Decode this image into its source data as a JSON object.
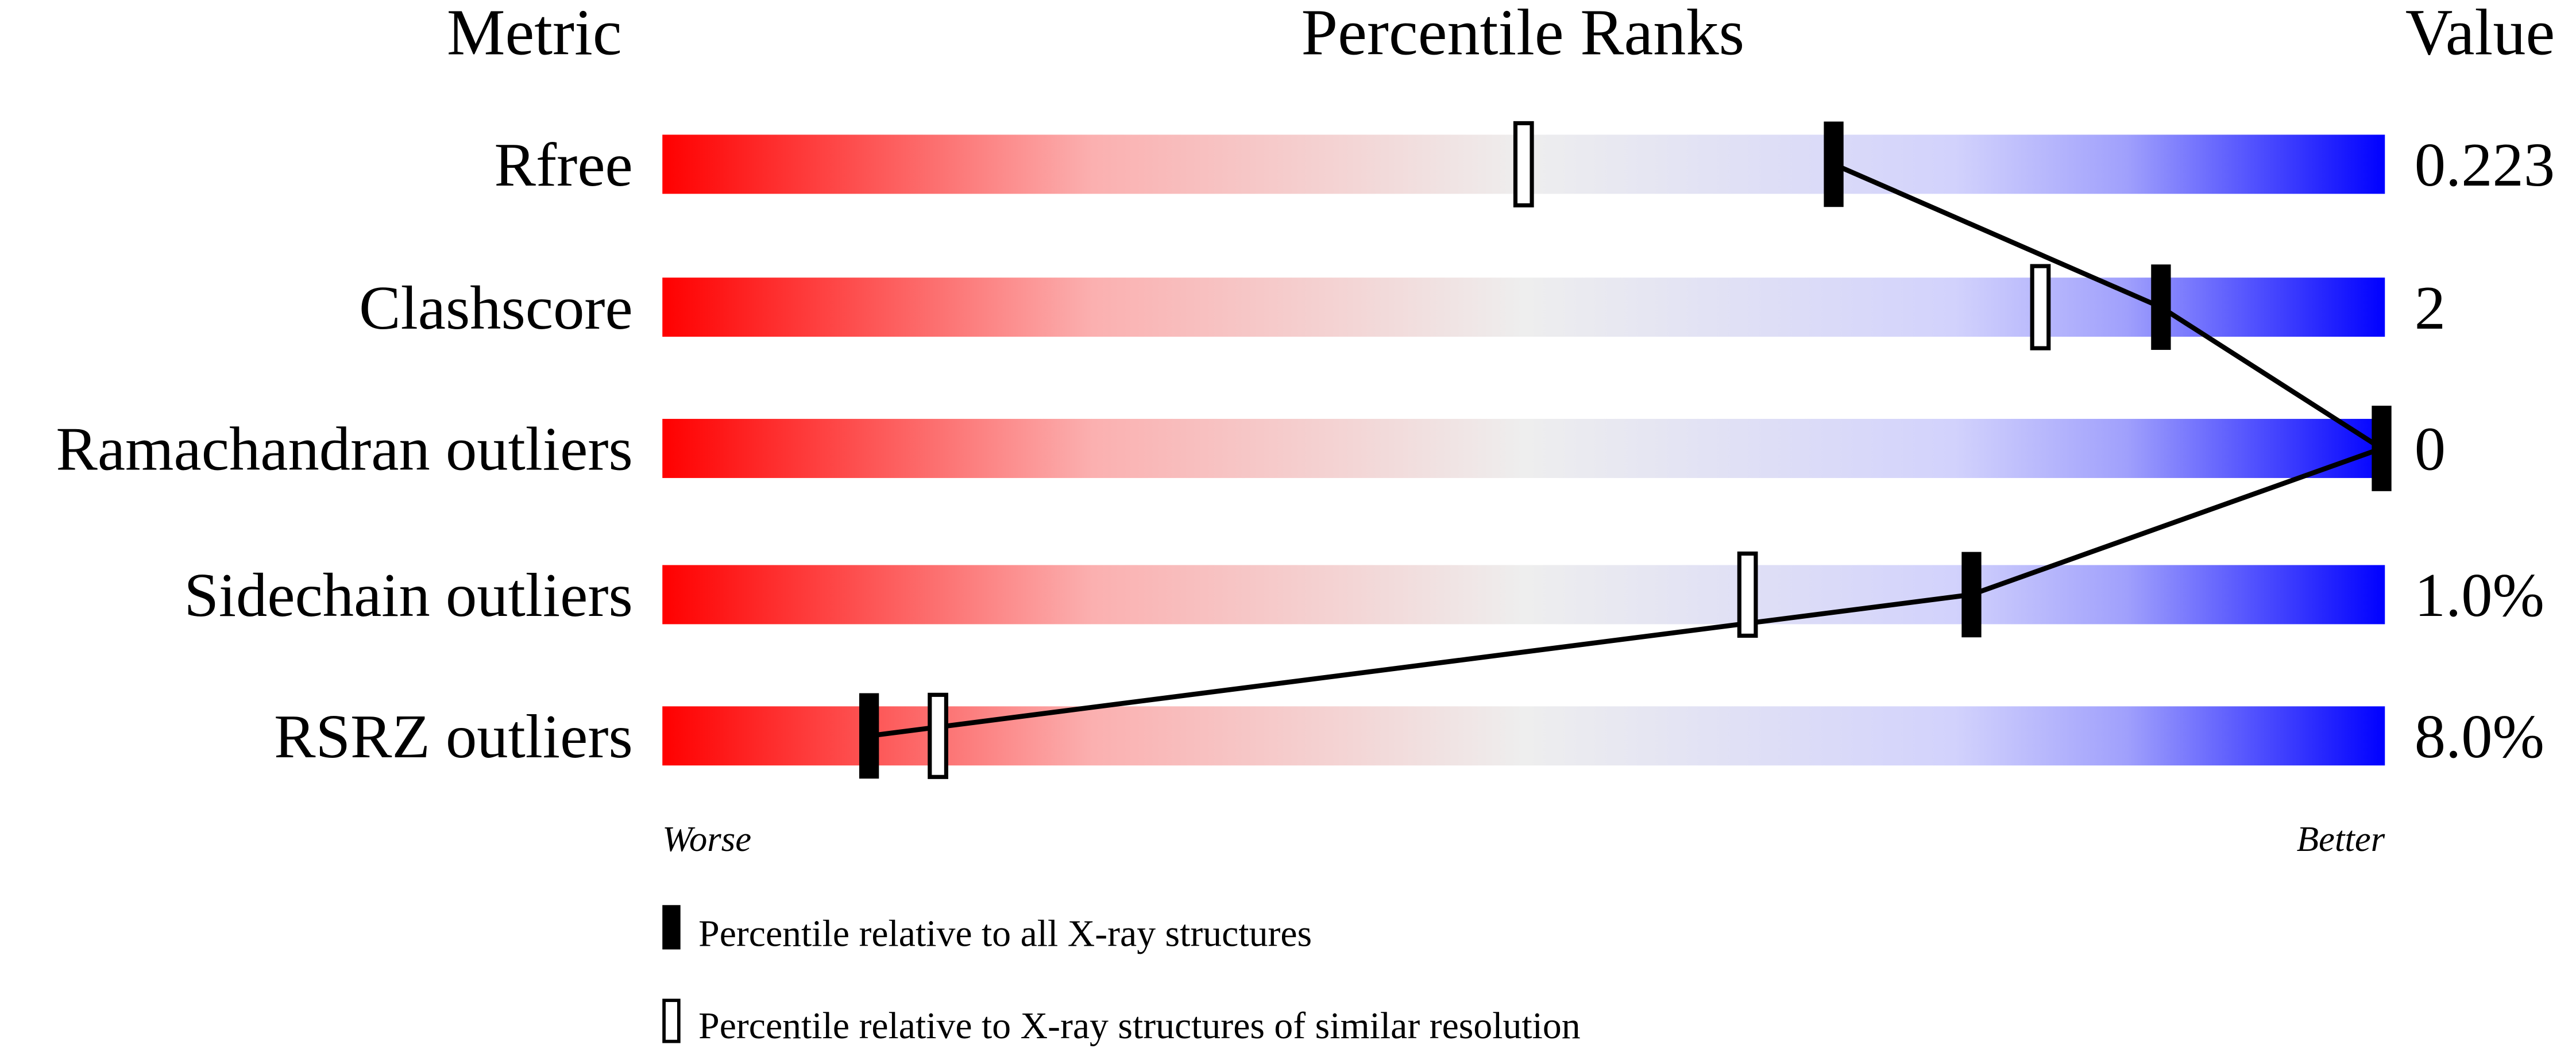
{
  "chart_data": {
    "type": "bar",
    "headers": {
      "metric": "Metric",
      "ranks": "Percentile Ranks",
      "value": "Value"
    },
    "xlim": [
      0,
      100
    ],
    "metrics": [
      {
        "name": "Rfree",
        "value": "0.223",
        "percentile_all": 68,
        "percentile_similar": 50
      },
      {
        "name": "Clashscore",
        "value": "2",
        "percentile_all": 87,
        "percentile_similar": 80
      },
      {
        "name": "Ramachandran outliers",
        "value": "0",
        "percentile_all": 100,
        "percentile_similar": null
      },
      {
        "name": "Sidechain outliers",
        "value": "1.0%",
        "percentile_all": 76,
        "percentile_similar": 63
      },
      {
        "name": "RSRZ outliers",
        "value": "8.0%",
        "percentile_all": 12,
        "percentile_similar": 16
      }
    ],
    "axis_labels": {
      "left": "Worse",
      "right": "Better"
    },
    "legend": [
      {
        "marker": "filled",
        "label": "Percentile relative to all X-ray structures"
      },
      {
        "marker": "open",
        "label": "Percentile relative to X-ray structures of similar resolution"
      }
    ],
    "colors": {
      "worse": "#ff0000",
      "middle": "#eeeeee",
      "better": "#0000ff",
      "marker": "#000000"
    }
  }
}
